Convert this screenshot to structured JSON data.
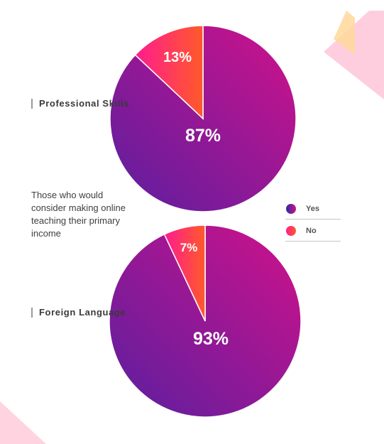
{
  "colors": {
    "yes_start": "#5a1fa0",
    "yes_end": "#d0118a",
    "no_start": "#ff1c8e",
    "no_end": "#ff5a2a",
    "label_text": "#ffffff"
  },
  "caption": "Those who would consider making online teaching their primary income",
  "legend": [
    {
      "label": "Yes",
      "icon": "gradient-dot-purple"
    },
    {
      "label": "No",
      "icon": "gradient-dot-red"
    }
  ],
  "chart_data": [
    {
      "type": "pie",
      "title": "Professional Skills",
      "categories": [
        "Yes",
        "No"
      ],
      "values": [
        87,
        13
      ],
      "value_labels": [
        "87%",
        "13%"
      ]
    },
    {
      "type": "pie",
      "title": "Foreign Language",
      "categories": [
        "Yes",
        "No"
      ],
      "values": [
        93,
        7
      ],
      "value_labels": [
        "93%",
        "7%"
      ]
    }
  ]
}
